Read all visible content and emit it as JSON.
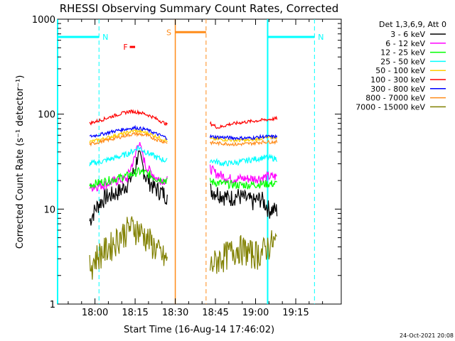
{
  "chart_data": {
    "type": "line",
    "title": "RHESSI Observing Summary Count Rates, Corrected",
    "xlabel": "Start Time (16-Aug-14 17:46:02)",
    "ylabel": "Corrected Count Rate (s⁻¹ detector⁻¹)",
    "yscale": "log",
    "ylim": [
      1,
      1000
    ],
    "xlim": [
      "17:46:02",
      "19:32:00"
    ],
    "x_ticks": [
      "18:00",
      "18:15",
      "18:30",
      "18:45",
      "19:00",
      "19:15"
    ],
    "y_ticks": [
      "1",
      "10",
      "100",
      "1000"
    ],
    "footer_date": "24-Oct-2021 20:08",
    "legend": {
      "header": "Det 1,3,6,9, Att 0",
      "placement": "outside-right"
    },
    "series": [
      {
        "name": "3 - 6 keV",
        "color": "#000000",
        "segments": [
          {
            "x": [
              "17:58",
              "18:01",
              "18:04",
              "18:07",
              "18:10",
              "18:13",
              "18:15",
              "18:16",
              "18:19",
              "18:22",
              "18:25",
              "18:27"
            ],
            "y": [
              7.5,
              11,
              13.5,
              14.5,
              16,
              20,
              26,
              38,
              22,
              17,
              15,
              14
            ]
          },
          {
            "x": [
              "18:43",
              "18:46",
              "18:50",
              "18:53",
              "18:56",
              "18:59",
              "19:02",
              "19:05",
              "19:08"
            ],
            "y": [
              16,
              15,
              13,
              14,
              13,
              12,
              13,
              10,
              9.8
            ]
          }
        ]
      },
      {
        "name": "6 - 12 keV",
        "color": "#ff00ff",
        "segments": [
          {
            "x": [
              "17:58",
              "18:03",
              "18:08",
              "18:12",
              "18:15",
              "18:16",
              "18:19",
              "18:23",
              "18:27"
            ],
            "y": [
              17,
              18,
              20,
              21,
              35,
              52,
              28,
              21,
              20
            ]
          },
          {
            "x": [
              "18:43",
              "18:45",
              "18:50",
              "18:55",
              "19:00",
              "19:05",
              "19:08"
            ],
            "y": [
              27,
              24,
              21,
              21,
              21,
              22,
              22
            ]
          }
        ]
      },
      {
        "name": "12 - 25 keV",
        "color": "#00ff00",
        "segments": [
          {
            "x": [
              "17:58",
              "18:03",
              "18:08",
              "18:12",
              "18:15",
              "18:16",
              "18:19",
              "18:23",
              "18:27"
            ],
            "y": [
              18,
              19.5,
              21,
              22.5,
              24,
              25,
              24,
              21,
              20
            ]
          },
          {
            "x": [
              "18:43",
              "18:48",
              "18:53",
              "18:58",
              "19:03",
              "19:08"
            ],
            "y": [
              19.5,
              18.5,
              18,
              18,
              18.5,
              18.5
            ]
          }
        ]
      },
      {
        "name": "25 - 50 keV",
        "color": "#00ffff",
        "segments": [
          {
            "x": [
              "17:58",
              "18:03",
              "18:08",
              "18:12",
              "18:15",
              "18:16",
              "18:19",
              "18:23",
              "18:27"
            ],
            "y": [
              30,
              32,
              35,
              38,
              42,
              45,
              40,
              35,
              32
            ]
          },
          {
            "x": [
              "18:43",
              "18:48",
              "18:53",
              "18:58",
              "19:03",
              "19:08"
            ],
            "y": [
              33,
              30,
              31,
              33,
              35,
              34
            ]
          }
        ]
      },
      {
        "name": "50 - 100 keV",
        "color": "#ffcc00",
        "segments": [
          {
            "x": [
              "17:58",
              "18:03",
              "18:08",
              "18:12",
              "18:15",
              "18:19",
              "18:23",
              "18:27"
            ],
            "y": [
              51,
              55,
              60,
              64,
              67,
              64,
              58,
              52
            ]
          },
          {
            "x": [
              "18:43",
              "18:48",
              "18:53",
              "18:58",
              "19:03",
              "19:08"
            ],
            "y": [
              55,
              54,
              53,
              53,
              56,
              57
            ]
          }
        ]
      },
      {
        "name": "100 - 300 keV",
        "color": "#ff0000",
        "segments": [
          {
            "x": [
              "17:58",
              "18:03",
              "18:08",
              "18:13",
              "18:17",
              "18:21",
              "18:25",
              "18:27"
            ],
            "y": [
              80,
              88,
              98,
              107,
              104,
              95,
              83,
              78
            ]
          },
          {
            "x": [
              "18:43",
              "18:46",
              "18:50",
              "18:55",
              "19:00",
              "19:05",
              "19:08"
            ],
            "y": [
              80,
              72,
              78,
              82,
              85,
              88,
              90
            ]
          }
        ]
      },
      {
        "name": "300 - 800 keV",
        "color": "#0000ff",
        "segments": [
          {
            "x": [
              "17:58",
              "18:03",
              "18:08",
              "18:12",
              "18:15",
              "18:19",
              "18:23",
              "18:27"
            ],
            "y": [
              58,
              62,
              67,
              70,
              72,
              69,
              62,
              56
            ]
          },
          {
            "x": [
              "18:43",
              "18:48",
              "18:53",
              "18:58",
              "19:03",
              "19:08"
            ],
            "y": [
              58,
              57,
              56,
              56,
              58,
              58
            ]
          }
        ]
      },
      {
        "name": "800 - 7000 keV",
        "color": "#ff8c1a",
        "segments": [
          {
            "x": [
              "17:58",
              "18:03",
              "18:08",
              "18:12",
              "18:15",
              "18:19",
              "18:23",
              "18:27"
            ],
            "y": [
              48,
              52,
              56,
              60,
              62,
              60,
              54,
              50
            ]
          },
          {
            "x": [
              "18:43",
              "18:48",
              "18:53",
              "18:58",
              "19:03",
              "19:08"
            ],
            "y": [
              50,
              49,
              48,
              49,
              51,
              51
            ]
          }
        ]
      },
      {
        "name": "7000 - 15000 keV",
        "color": "#808000",
        "segments": [
          {
            "x": [
              "17:58",
              "18:01",
              "18:04",
              "18:07",
              "18:10",
              "18:13",
              "18:15",
              "18:18",
              "18:21",
              "18:24",
              "18:27"
            ],
            "y": [
              2.5,
              3.3,
              3.8,
              4.5,
              5.5,
              6.5,
              6.5,
              5.5,
              4.5,
              3.5,
              2.8
            ]
          },
          {
            "x": [
              "18:43",
              "18:46",
              "18:50",
              "18:54",
              "18:58",
              "19:02",
              "19:06",
              "19:08"
            ],
            "y": [
              2.5,
              3,
              3.5,
              4,
              3.5,
              3.5,
              4.5,
              4.5
            ]
          }
        ]
      }
    ],
    "annotations": [
      {
        "label": "N",
        "color": "#00ffff",
        "type": "night",
        "x_start": "17:46:02",
        "x_end": "18:01:30",
        "bar_y": 650
      },
      {
        "label": "N",
        "color": "#00ffff",
        "type": "night",
        "x_start": "19:04:30",
        "x_end": "19:22:00",
        "bar_y": 650
      },
      {
        "label": "S",
        "color": "#ff8c1a",
        "type": "saa",
        "x_start": "18:30:00",
        "x_end": "18:41:30",
        "bar_y": 730
      },
      {
        "label": "F",
        "color": "#ff0000",
        "type": "flare",
        "x_start": "18:13:00",
        "x_end": "18:15:00",
        "bar_y": 510
      }
    ]
  }
}
